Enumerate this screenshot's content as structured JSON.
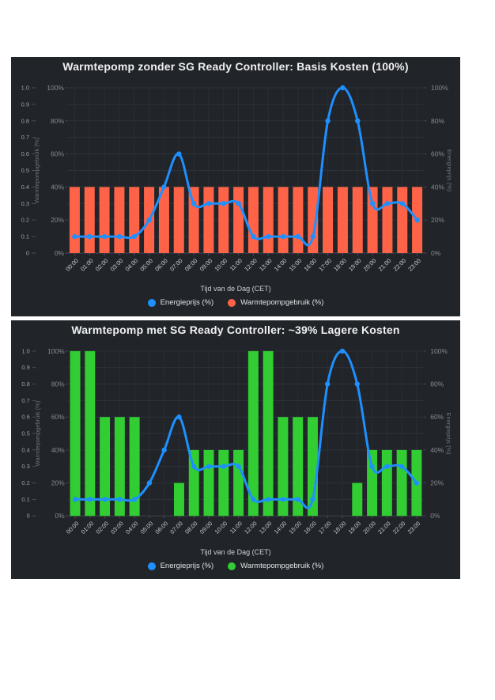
{
  "charts": [
    {
      "title": "Warmtepomp zonder SG Ready Controller: Basis Kosten (100%)",
      "panel_bg": "#212429",
      "chart_data": {
        "type": "bar+line",
        "categories": [
          "00:00",
          "01:00",
          "02:00",
          "03:00",
          "04:00",
          "05:00",
          "06:00",
          "07:00",
          "08:00",
          "09:00",
          "10:00",
          "11:00",
          "12:00",
          "13:00",
          "14:00",
          "15:00",
          "16:00",
          "17:00",
          "18:00",
          "19:00",
          "20:00",
          "21:00",
          "22:00",
          "23:00"
        ],
        "series": [
          {
            "name": "Energieprijs (%)",
            "type": "line",
            "axis": "right",
            "color": "#1e90ff",
            "values": [
              10,
              10,
              10,
              10,
              10,
              20,
              40,
              60,
              30,
              30,
              30,
              30,
              10,
              10,
              10,
              10,
              10,
              80,
              100,
              80,
              30,
              30,
              30,
              20
            ]
          },
          {
            "name": "Warmtepompgebruik (%)",
            "type": "bar",
            "axis": "left",
            "color": "#ff6347",
            "values": [
              40,
              40,
              40,
              40,
              40,
              40,
              40,
              40,
              40,
              40,
              40,
              40,
              40,
              40,
              40,
              40,
              40,
              40,
              40,
              40,
              40,
              40,
              40,
              40
            ]
          }
        ],
        "xlabel": "Tijd van de Dag (CET)",
        "ylabel_left": "Warmtepompgebruik (%)",
        "ylabel_right": "Energieprijs (%)",
        "y_left_outer_ticks": [
          "1.0",
          "0.9",
          "0.8",
          "0.7",
          "0.6",
          "0.5",
          "0.4",
          "0.3",
          "0.2",
          "0.1",
          "0"
        ],
        "y_percent_ticks": [
          "100%",
          "80%",
          "60%",
          "40%",
          "20%",
          "0%"
        ],
        "ylim": [
          0,
          100
        ],
        "grid": true,
        "legend_position": "bottom"
      }
    },
    {
      "title": "Warmtepomp met SG Ready Controller: ~39% Lagere Kosten",
      "panel_bg": "#212429",
      "chart_data": {
        "type": "bar+line",
        "categories": [
          "00:00",
          "01:00",
          "02:00",
          "03:00",
          "04:00",
          "05:00",
          "06:00",
          "07:00",
          "08:00",
          "09:00",
          "10:00",
          "11:00",
          "12:00",
          "13:00",
          "14:00",
          "15:00",
          "16:00",
          "17:00",
          "18:00",
          "19:00",
          "20:00",
          "21:00",
          "22:00",
          "23:00"
        ],
        "series": [
          {
            "name": "Energieprijs (%)",
            "type": "line",
            "axis": "right",
            "color": "#1e90ff",
            "values": [
              10,
              10,
              10,
              10,
              10,
              20,
              40,
              60,
              30,
              30,
              30,
              30,
              10,
              10,
              10,
              10,
              10,
              80,
              100,
              80,
              30,
              30,
              30,
              20
            ]
          },
          {
            "name": "Warmtepompgebruik (%)",
            "type": "bar",
            "axis": "left",
            "color": "#32cd32",
            "values": [
              100,
              100,
              60,
              60,
              60,
              0,
              0,
              20,
              40,
              40,
              40,
              40,
              100,
              100,
              60,
              60,
              60,
              0,
              0,
              20,
              40,
              40,
              40,
              40
            ]
          }
        ],
        "xlabel": "Tijd van de Dag (CET)",
        "ylabel_left": "Warmtepompgebruik (%)",
        "ylabel_right": "Energieprijs (%)",
        "y_left_outer_ticks": [
          "1.0",
          "0.9",
          "0.8",
          "0.7",
          "0.6",
          "0.5",
          "0.4",
          "0.3",
          "0.2",
          "0.1",
          "0"
        ],
        "y_percent_ticks": [
          "100%",
          "80%",
          "60%",
          "40%",
          "20%",
          "0%"
        ],
        "ylim": [
          0,
          100
        ],
        "grid": true,
        "legend_position": "bottom"
      }
    }
  ]
}
